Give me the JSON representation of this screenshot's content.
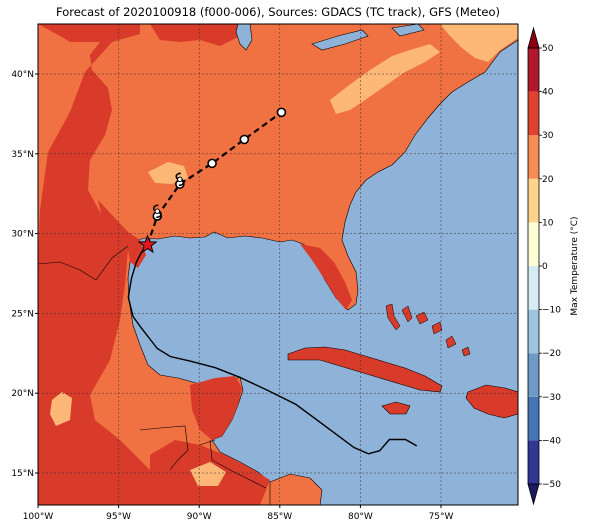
{
  "title": "Forecast of 2020100918 (f000-006), Sources: GDACS (TC track), GFS (Meteo)",
  "map": {
    "lon_range": [
      -100,
      -70
    ],
    "lat_range": [
      13,
      43
    ],
    "lon_ticks": [
      {
        "value": -100,
        "label": "100°W"
      },
      {
        "value": -95,
        "label": "95°W"
      },
      {
        "value": -90,
        "label": "90°W"
      },
      {
        "value": -85,
        "label": "85°W"
      },
      {
        "value": -80,
        "label": "80°W"
      },
      {
        "value": -75,
        "label": "75°W"
      }
    ],
    "lat_ticks": [
      {
        "value": 15,
        "label": "15°N"
      },
      {
        "value": 20,
        "label": "20°N"
      },
      {
        "value": 25,
        "label": "25°N"
      },
      {
        "value": 30,
        "label": "30°N"
      },
      {
        "value": 35,
        "label": "35°N"
      },
      {
        "value": 40,
        "label": "40°N"
      }
    ],
    "gridlines": true
  },
  "colorbar": {
    "label": "Max Temperature (°C)",
    "min": -50,
    "max": 50,
    "ticks": [
      {
        "value": 50,
        "label": "50"
      },
      {
        "value": 40,
        "label": "40"
      },
      {
        "value": 30,
        "label": "30"
      },
      {
        "value": 20,
        "label": "20"
      },
      {
        "value": 10,
        "label": "10"
      },
      {
        "value": 0,
        "label": "0"
      },
      {
        "value": -10,
        "label": "−10"
      },
      {
        "value": -20,
        "label": "−20"
      },
      {
        "value": -30,
        "label": "−30"
      },
      {
        "value": -40,
        "label": "−40"
      },
      {
        "value": -50,
        "label": "−50"
      }
    ],
    "colors": [
      "#313695",
      "#4575b4",
      "#6d9ac6",
      "#9ec4e0",
      "#d6ecf5",
      "#fefed6",
      "#fed48a",
      "#f88d52",
      "#e0422f",
      "#b2182b"
    ],
    "over_color": "#8b0012",
    "under_color": "#1a1a60"
  },
  "track": {
    "observed": [
      [
        -76.5,
        16.7
      ],
      [
        -77.2,
        17.1
      ],
      [
        -78.2,
        17.1
      ],
      [
        -78.8,
        16.4
      ],
      [
        -79.5,
        16.2
      ],
      [
        -80.4,
        16.6
      ],
      [
        -82,
        17.8
      ],
      [
        -84,
        19.3
      ],
      [
        -85.8,
        20.2
      ],
      [
        -87.5,
        21
      ],
      [
        -89,
        21.6
      ],
      [
        -90.5,
        22
      ],
      [
        -91.8,
        22.3
      ],
      [
        -92.6,
        22.8
      ],
      [
        -93.6,
        24.1
      ],
      [
        -94.1,
        24.8
      ],
      [
        -94.4,
        26
      ],
      [
        -94.2,
        27.2
      ],
      [
        -93.9,
        28.2
      ],
      [
        -93.6,
        28.8
      ],
      [
        -93.2,
        29.3
      ]
    ],
    "forecast": [
      [
        -93.2,
        29.3
      ],
      [
        -92.6,
        31.1
      ],
      [
        -91.2,
        33.1
      ],
      [
        -89.2,
        34.4
      ],
      [
        -87.2,
        35.9
      ],
      [
        -84.9,
        37.6
      ]
    ],
    "landfall": [
      -93.2,
      29.3
    ],
    "forecast_points": [
      [
        -92.6,
        31.1
      ],
      [
        -91.2,
        33.1
      ],
      [
        -89.2,
        34.4
      ],
      [
        -87.2,
        35.9
      ],
      [
        -84.9,
        37.6
      ]
    ],
    "symbol_points": [
      [
        -92.6,
        31.4
      ],
      [
        -91.2,
        33.4
      ]
    ]
  }
}
